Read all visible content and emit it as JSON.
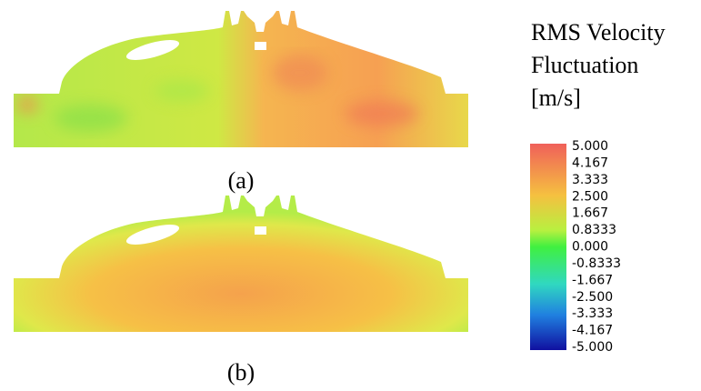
{
  "panels": [
    {
      "label": "(a)"
    },
    {
      "label": "(b)"
    }
  ],
  "colorbar": {
    "title": [
      "RMS Velocity",
      "Fluctuation",
      "[m/s]"
    ],
    "ticks": [
      "5.000",
      "4.167",
      "3.333",
      "2.500",
      "1.667",
      "0.8333",
      "0.000",
      "-0.8333",
      "-1.667",
      "-2.500",
      "-3.333",
      "-4.167",
      "-5.000"
    ]
  }
}
